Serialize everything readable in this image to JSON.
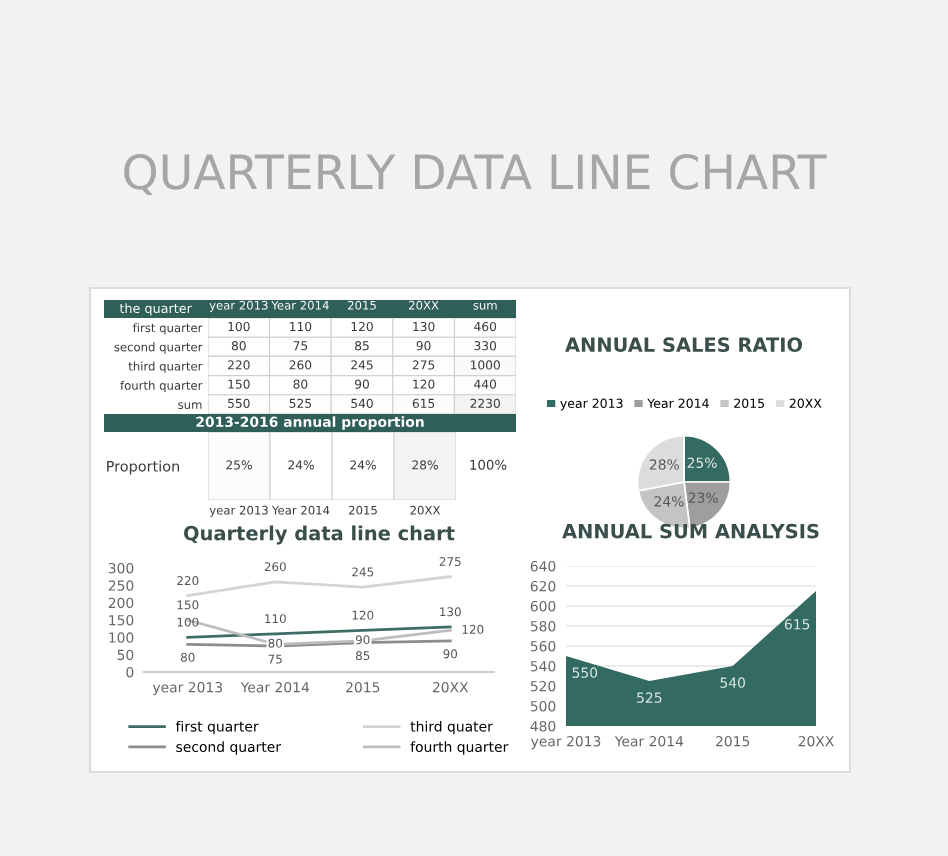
{
  "chart_data": [
    {
      "type": "heatmap",
      "title": "QUARTERLY DATA LINE CHART",
      "ylabel": "the quarter",
      "categories": [
        "year 2013",
        "Year 2014",
        "2015",
        "20XX",
        "sum"
      ],
      "y_categories": [
        "first quarter",
        "second quarter",
        "third quarter",
        "fourth quarter",
        "sum"
      ],
      "cells": [
        [
          100,
          110,
          120,
          130,
          460
        ],
        [
          80,
          75,
          85,
          90,
          330
        ],
        [
          220,
          260,
          245,
          275,
          1000
        ],
        [
          150,
          80,
          90,
          120,
          440
        ],
        [
          550,
          525,
          540,
          615,
          2230
        ]
      ],
      "cell_labels": [
        [
          "100",
          "110",
          "120",
          "130",
          "460"
        ],
        [
          "80",
          "75",
          "85",
          "90",
          "330"
        ],
        [
          "220",
          "260",
          "245",
          "275",
          "1000"
        ],
        [
          "150",
          "80",
          "90",
          "120",
          "440"
        ],
        [
          "550",
          "525",
          "540",
          "615",
          "2230"
        ]
      ]
    },
    {
      "type": "heatmap",
      "title": "2013-2016 annual proportion",
      "categories": [
        "year 2013",
        "Year 2014",
        "2015",
        "20XX"
      ],
      "y_categories": [
        "Proportion"
      ],
      "cells": [
        [
          25,
          24,
          24,
          28
        ]
      ],
      "cell_labels": [
        [
          "25%",
          "24%",
          "24%",
          "28%"
        ]
      ],
      "annotations": [
        "100%"
      ]
    },
    {
      "type": "pie",
      "title": "ANNUAL SALES RATIO",
      "categories": [
        "year 2013",
        "Year 2014",
        "2015",
        "20XX"
      ],
      "values": [
        25,
        23,
        24,
        28
      ],
      "value_labels": [
        "25%",
        "23%",
        "24%",
        "28%"
      ],
      "colors": [
        "#336b62",
        "#9e9e9e",
        "#c4c4c4",
        "#dcdcdc"
      ],
      "legend": "top"
    },
    {
      "type": "line",
      "title": "Quarterly data line chart",
      "categories": [
        "year 2013",
        "Year 2014",
        "2015",
        "20XX"
      ],
      "ylim": [
        0,
        300
      ],
      "yticks": [
        0,
        50,
        100,
        150,
        200,
        250,
        300
      ],
      "data_labels": true,
      "legend": "bottom",
      "series": [
        {
          "name": "first quarter",
          "color": "#3d6e66",
          "values": [
            100,
            110,
            120,
            130
          ]
        },
        {
          "name": "second quarter",
          "color": "#8c8c8c",
          "values": [
            80,
            75,
            85,
            90
          ]
        },
        {
          "name": "third quater",
          "color": "#d4d4d4",
          "values": [
            220,
            260,
            245,
            275
          ]
        },
        {
          "name": "fourth quarter",
          "color": "#bdbdbd",
          "values": [
            150,
            80,
            90,
            120
          ]
        }
      ]
    },
    {
      "type": "area",
      "title": "ANNUAL SUM ANALYSIS",
      "categories": [
        "year 2013",
        "Year 2014",
        "2015",
        "20XX"
      ],
      "values": [
        550,
        525,
        540,
        615
      ],
      "color": "#336b62",
      "ylim": [
        480,
        640
      ],
      "yticks": [
        480,
        500,
        520,
        540,
        560,
        580,
        600,
        620,
        640
      ],
      "grid": "y",
      "data_labels": true
    }
  ]
}
